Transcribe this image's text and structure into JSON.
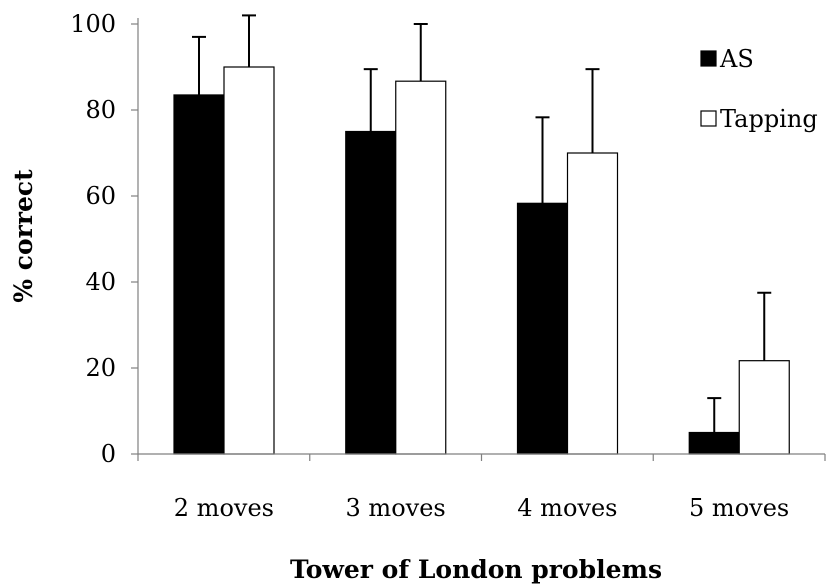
{
  "chart_data": {
    "type": "bar",
    "title": "",
    "xlabel": "Tower of London problems",
    "ylabel": "% correct",
    "ylim": [
      0,
      100
    ],
    "yticks": [
      0,
      20,
      40,
      60,
      80,
      100
    ],
    "categories": [
      "2 moves",
      "3 moves",
      "4 moves",
      "5 moves"
    ],
    "series": [
      {
        "name": "AS",
        "color": "#000000",
        "values": [
          83.5,
          75,
          58.3,
          5
        ],
        "errors": [
          13.5,
          14.5,
          20,
          8
        ]
      },
      {
        "name": "Tapping",
        "color": "#ffffff",
        "values": [
          90,
          86.7,
          70,
          21.7
        ],
        "errors": [
          12,
          13.3,
          19.5,
          15.8
        ]
      }
    ],
    "error_bar_color": "#000000",
    "legend_position": "top-right"
  }
}
